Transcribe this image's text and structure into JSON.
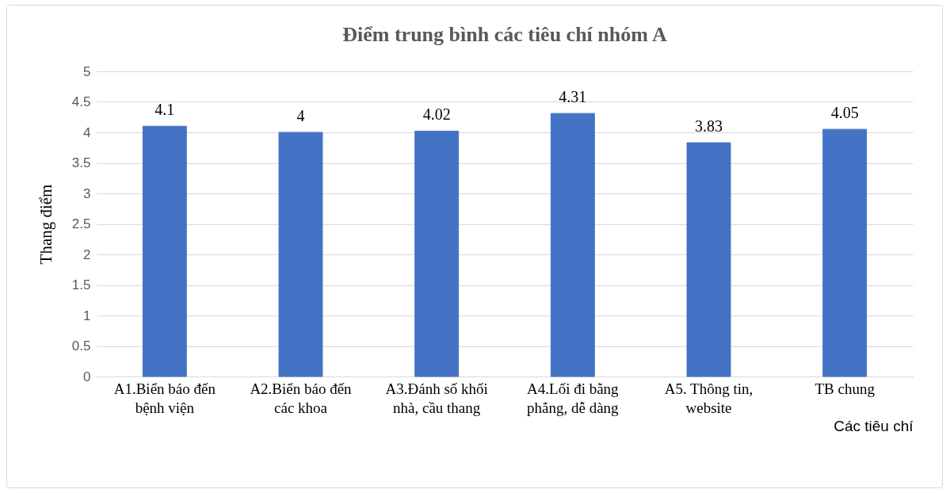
{
  "chart_data": {
    "type": "bar",
    "title": "Điểm trung bình các tiêu chí nhóm A",
    "xlabel": "Các tiêu chí",
    "ylabel": "Thang điểm",
    "categories": [
      "A1.Biển báo đến bệnh viện",
      "A2.Biển báo đến các khoa",
      "A3.Đánh số khối nhà, cầu thang",
      "A4.Lối đi bằng phẳng, dễ dàng",
      "A5. Thông tin, website",
      "TB chung"
    ],
    "values": [
      4.1,
      4,
      4.02,
      4.31,
      3.83,
      4.05
    ],
    "color": "#4472c4",
    "ylim": [
      0,
      5
    ],
    "yticks": [
      0,
      0.5,
      1,
      1.5,
      2,
      2.5,
      3,
      3.5,
      4,
      4.5,
      5
    ],
    "grid": "y",
    "data_labels": true
  }
}
